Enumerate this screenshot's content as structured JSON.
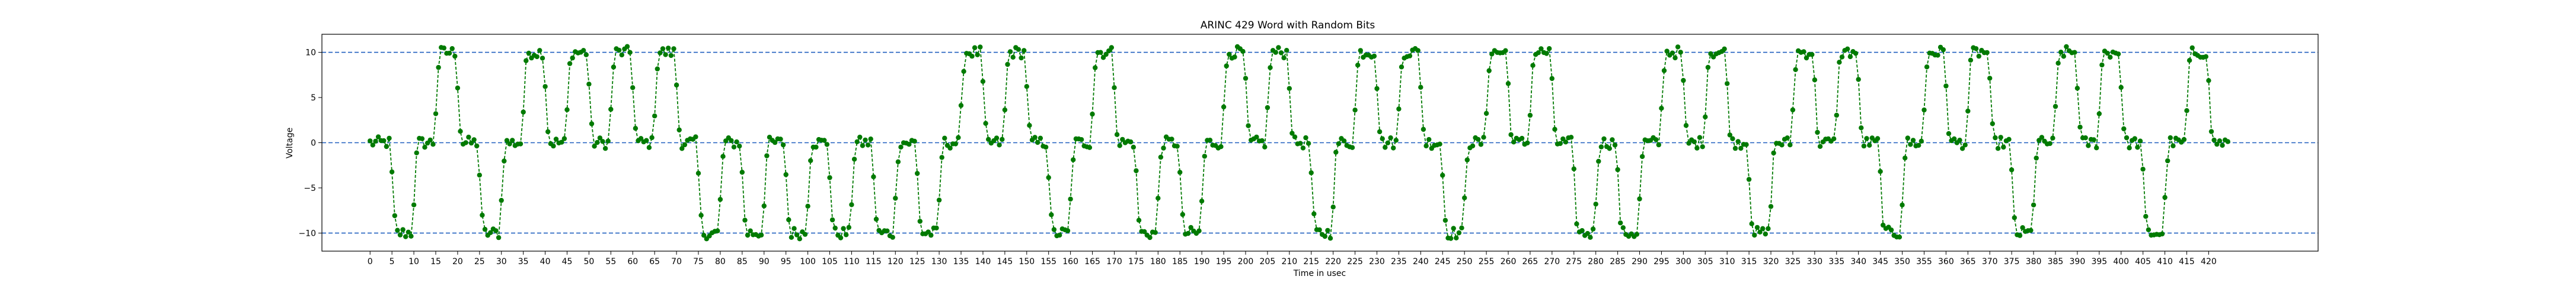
{
  "chart_data": {
    "type": "line",
    "title": "ARINC 429 Word with Random Bits",
    "xlabel": "Time in usec",
    "ylabel": "Voltage",
    "xlim": [
      -11,
      445
    ],
    "ylim": [
      -12,
      12
    ],
    "grid": false,
    "x_ticks": [
      0,
      5,
      10,
      15,
      20,
      25,
      30,
      35,
      40,
      45,
      50,
      55,
      60,
      65,
      70,
      75,
      80,
      85,
      90,
      95,
      100,
      105,
      110,
      115,
      120,
      125,
      130,
      135,
      140,
      145,
      150,
      155,
      160,
      165,
      170,
      175,
      180,
      185,
      190,
      195,
      200,
      205,
      210,
      215,
      220,
      225,
      230,
      235,
      240,
      245,
      250,
      255,
      260,
      265,
      270,
      275,
      280,
      285,
      290,
      295,
      300,
      305,
      310,
      315,
      320,
      325,
      330,
      335,
      340,
      345,
      350,
      355,
      360,
      365,
      370,
      375,
      380,
      385,
      390,
      395,
      400,
      405,
      410,
      415,
      420
    ],
    "y_ticks": [
      -10,
      -5,
      0,
      5,
      10
    ],
    "reference_lines": [
      {
        "y": 10,
        "color": "#1f5fbf",
        "style": "dashed"
      },
      {
        "y": 0,
        "color": "#1f5fbf",
        "style": "dashed"
      },
      {
        "y": -10,
        "color": "#1f5fbf",
        "style": "dashed"
      }
    ],
    "bit_period_usec": 10,
    "bit_states": [
      0,
      -1,
      0,
      1,
      0,
      -1,
      0,
      1,
      0,
      1,
      0,
      1,
      0,
      1,
      0,
      -1,
      0,
      -1,
      0,
      -1,
      0,
      -1,
      0,
      -1,
      0,
      -1,
      0,
      1,
      0,
      1,
      0,
      -1,
      0,
      1,
      0,
      -1,
      0,
      -1,
      0,
      1,
      0,
      1,
      0,
      -1,
      0,
      1,
      0,
      1,
      0,
      -1,
      0,
      1,
      0,
      1,
      0,
      -1,
      0,
      -1,
      0,
      1,
      0,
      1,
      0,
      -1,
      0,
      1,
      0,
      1,
      0,
      -1,
      0,
      1,
      0,
      1,
      0,
      -1,
      0,
      1,
      0,
      1,
      0,
      -1,
      0,
      1,
      0
    ],
    "series": [
      {
        "color": "#007a00",
        "style": "dashed-line-with-markers",
        "marker": "circle"
      }
    ]
  }
}
